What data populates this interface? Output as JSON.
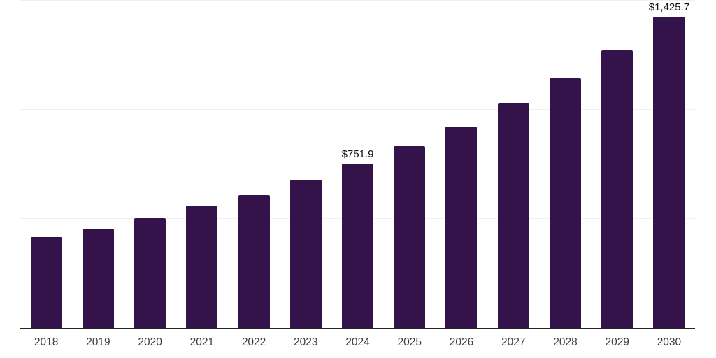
{
  "chart_data": {
    "type": "bar",
    "title": "",
    "xlabel": "",
    "ylabel": "",
    "categories": [
      "2018",
      "2019",
      "2020",
      "2021",
      "2022",
      "2023",
      "2024",
      "2025",
      "2026",
      "2027",
      "2028",
      "2029",
      "2030"
    ],
    "values": [
      417,
      456,
      504,
      560,
      610,
      679,
      751.9,
      832,
      923,
      1029,
      1144,
      1272,
      1425.7
    ],
    "value_labels": [
      {
        "category": "2024",
        "text": "$751.9"
      },
      {
        "category": "2030",
        "text": "$1,425.7"
      }
    ],
    "ylim": [
      0,
      1500
    ],
    "grid": true,
    "gridline_step": 250,
    "legend": false,
    "y_axis_ticks_visible": false,
    "colors": {
      "bar": "#331349",
      "gridline": "#f0f0f0",
      "axis_line": "#262626",
      "axis_label": "#3d3d3d",
      "value_label": "#111111",
      "background": "#ffffff"
    }
  }
}
